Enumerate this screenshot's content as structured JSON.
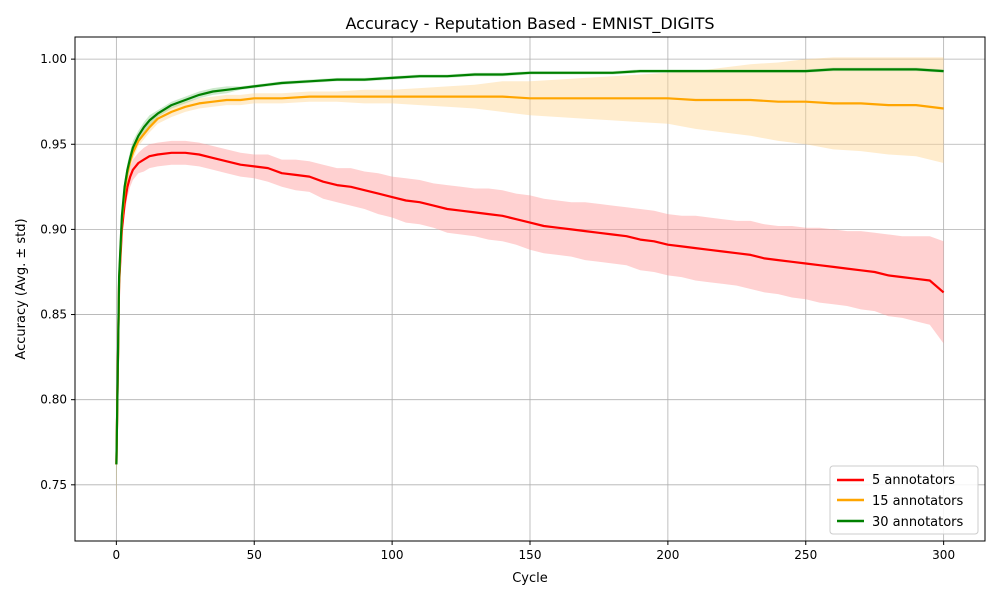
{
  "chart_data": {
    "type": "line",
    "title": "Accuracy - Reputation Based - EMNIST_DIGITS",
    "xlabel": "Cycle",
    "ylabel": "Accuracy (Avg. ± std)",
    "xlim": [
      -15,
      315
    ],
    "ylim": [
      0.717,
      1.013
    ],
    "xticks": [
      0,
      50,
      100,
      150,
      200,
      250,
      300
    ],
    "yticks": [
      0.75,
      0.8,
      0.85,
      0.9,
      0.95,
      1.0
    ],
    "xtick_labels": [
      "0",
      "50",
      "100",
      "150",
      "200",
      "250",
      "300"
    ],
    "ytick_labels": [
      "0.75",
      "0.80",
      "0.85",
      "0.90",
      "0.95",
      "1.00"
    ],
    "grid": true,
    "legend_position": "lower-right",
    "series": [
      {
        "name": "5 annotators",
        "color": "#ff0000",
        "band_color": "#ff9999",
        "x": [
          0,
          1,
          2,
          3,
          4,
          5,
          6,
          8,
          10,
          12,
          15,
          20,
          25,
          30,
          35,
          40,
          45,
          50,
          55,
          60,
          65,
          70,
          75,
          80,
          85,
          90,
          95,
          100,
          105,
          110,
          115,
          120,
          125,
          130,
          135,
          140,
          145,
          150,
          155,
          160,
          165,
          170,
          175,
          180,
          185,
          190,
          195,
          200,
          205,
          210,
          215,
          220,
          225,
          230,
          235,
          240,
          245,
          250,
          255,
          260,
          265,
          270,
          275,
          280,
          285,
          290,
          295,
          300
        ],
        "y": [
          0.762,
          0.868,
          0.9,
          0.915,
          0.925,
          0.931,
          0.935,
          0.939,
          0.941,
          0.943,
          0.944,
          0.945,
          0.945,
          0.944,
          0.942,
          0.94,
          0.938,
          0.937,
          0.936,
          0.933,
          0.932,
          0.931,
          0.928,
          0.926,
          0.925,
          0.923,
          0.921,
          0.919,
          0.917,
          0.916,
          0.914,
          0.912,
          0.911,
          0.91,
          0.909,
          0.908,
          0.906,
          0.904,
          0.902,
          0.901,
          0.9,
          0.899,
          0.898,
          0.897,
          0.896,
          0.894,
          0.893,
          0.891,
          0.89,
          0.889,
          0.888,
          0.887,
          0.886,
          0.885,
          0.883,
          0.882,
          0.881,
          0.88,
          0.879,
          0.878,
          0.877,
          0.876,
          0.875,
          0.873,
          0.872,
          0.871,
          0.87,
          0.863
        ],
        "std": [
          0.03,
          0.012,
          0.008,
          0.006,
          0.006,
          0.006,
          0.006,
          0.006,
          0.007,
          0.007,
          0.007,
          0.007,
          0.007,
          0.007,
          0.007,
          0.007,
          0.007,
          0.007,
          0.008,
          0.008,
          0.009,
          0.009,
          0.01,
          0.01,
          0.011,
          0.011,
          0.012,
          0.012,
          0.013,
          0.013,
          0.013,
          0.014,
          0.014,
          0.014,
          0.015,
          0.015,
          0.015,
          0.016,
          0.016,
          0.016,
          0.016,
          0.017,
          0.017,
          0.017,
          0.017,
          0.018,
          0.018,
          0.018,
          0.018,
          0.019,
          0.019,
          0.019,
          0.019,
          0.02,
          0.02,
          0.02,
          0.021,
          0.021,
          0.022,
          0.022,
          0.022,
          0.023,
          0.023,
          0.024,
          0.024,
          0.025,
          0.026,
          0.03
        ]
      },
      {
        "name": "15 annotators",
        "color": "#ffa500",
        "band_color": "#ffd590",
        "x": [
          0,
          1,
          2,
          3,
          4,
          5,
          6,
          8,
          10,
          12,
          15,
          20,
          25,
          30,
          35,
          40,
          45,
          50,
          55,
          60,
          70,
          80,
          90,
          100,
          110,
          120,
          130,
          140,
          150,
          160,
          170,
          180,
          190,
          200,
          210,
          220,
          230,
          240,
          250,
          260,
          270,
          280,
          290,
          300
        ],
        "y": [
          0.762,
          0.87,
          0.905,
          0.922,
          0.933,
          0.94,
          0.945,
          0.952,
          0.956,
          0.96,
          0.965,
          0.969,
          0.972,
          0.974,
          0.975,
          0.976,
          0.976,
          0.977,
          0.977,
          0.977,
          0.978,
          0.978,
          0.978,
          0.978,
          0.978,
          0.978,
          0.978,
          0.978,
          0.977,
          0.977,
          0.977,
          0.977,
          0.977,
          0.977,
          0.976,
          0.976,
          0.976,
          0.975,
          0.975,
          0.974,
          0.974,
          0.973,
          0.973,
          0.971
        ],
        "std": [
          0.03,
          0.008,
          0.006,
          0.005,
          0.004,
          0.004,
          0.004,
          0.003,
          0.003,
          0.003,
          0.003,
          0.003,
          0.003,
          0.003,
          0.003,
          0.003,
          0.003,
          0.003,
          0.003,
          0.003,
          0.003,
          0.003,
          0.004,
          0.004,
          0.005,
          0.006,
          0.007,
          0.009,
          0.01,
          0.011,
          0.012,
          0.013,
          0.014,
          0.015,
          0.017,
          0.019,
          0.021,
          0.023,
          0.025,
          0.027,
          0.028,
          0.029,
          0.03,
          0.032
        ]
      },
      {
        "name": "30 annotators",
        "color": "#008000",
        "band_color": "#8fcf8f",
        "x": [
          0,
          1,
          2,
          3,
          4,
          5,
          6,
          8,
          10,
          12,
          15,
          20,
          25,
          30,
          35,
          40,
          45,
          50,
          55,
          60,
          70,
          80,
          90,
          100,
          110,
          120,
          130,
          140,
          150,
          160,
          170,
          180,
          190,
          200,
          210,
          220,
          230,
          240,
          250,
          260,
          270,
          280,
          290,
          300
        ],
        "y": [
          0.762,
          0.872,
          0.908,
          0.925,
          0.935,
          0.942,
          0.948,
          0.955,
          0.96,
          0.964,
          0.968,
          0.973,
          0.976,
          0.979,
          0.981,
          0.982,
          0.983,
          0.984,
          0.985,
          0.986,
          0.987,
          0.988,
          0.988,
          0.989,
          0.99,
          0.99,
          0.991,
          0.991,
          0.992,
          0.992,
          0.992,
          0.992,
          0.993,
          0.993,
          0.993,
          0.993,
          0.993,
          0.993,
          0.993,
          0.994,
          0.994,
          0.994,
          0.994,
          0.993
        ],
        "std": [
          0.03,
          0.007,
          0.005,
          0.004,
          0.004,
          0.004,
          0.004,
          0.003,
          0.003,
          0.003,
          0.002,
          0.002,
          0.002,
          0.002,
          0.002,
          0.002,
          0.001,
          0.001,
          0.001,
          0.001,
          0.001,
          0.001,
          0.001,
          0.001,
          0.001,
          0.001,
          0.001,
          0.001,
          0.001,
          0.001,
          0.001,
          0.001,
          0.001,
          0.001,
          0.001,
          0.001,
          0.001,
          0.001,
          0.001,
          0.001,
          0.001,
          0.001,
          0.001,
          0.001
        ]
      }
    ]
  }
}
